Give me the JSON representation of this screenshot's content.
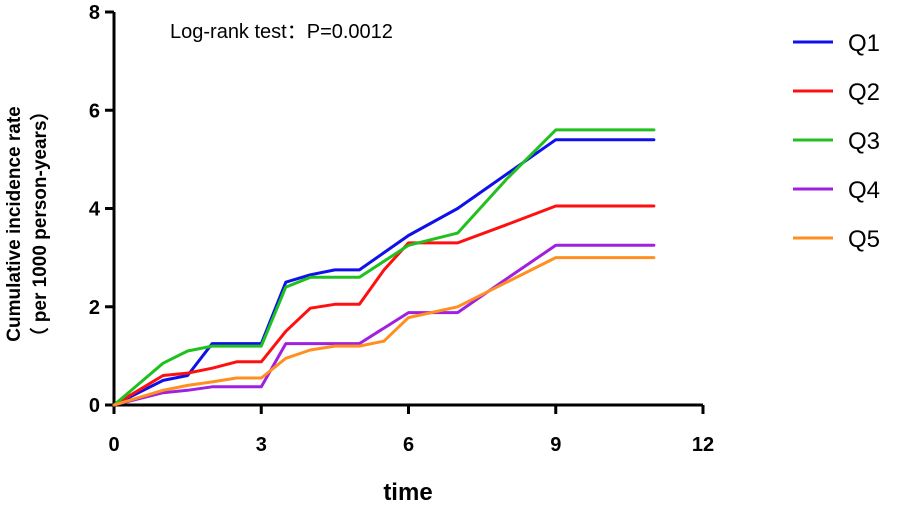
{
  "chart_data": {
    "type": "line",
    "xlabel": "time",
    "ylabel_line1": "Cumulative incidence rate",
    "ylabel_line2": "（ per 1000 person-years）",
    "annotation": "Log-rank test：P=0.0012",
    "xlim": [
      0,
      12
    ],
    "ylim": [
      0,
      8
    ],
    "xticks": [
      0,
      3,
      6,
      9,
      12
    ],
    "yticks": [
      0,
      2,
      4,
      6,
      8
    ],
    "grid": false,
    "legend_position": "right",
    "series": [
      {
        "name": "Q1",
        "color": "#1010e8",
        "points": [
          [
            0,
            0
          ],
          [
            1,
            0.5
          ],
          [
            1.5,
            0.6
          ],
          [
            2,
            1.25
          ],
          [
            3,
            1.25
          ],
          [
            3.5,
            2.5
          ],
          [
            4,
            2.65
          ],
          [
            4.5,
            2.75
          ],
          [
            5,
            2.75
          ],
          [
            6,
            3.45
          ],
          [
            7,
            4.0
          ],
          [
            8,
            4.7
          ],
          [
            9,
            5.4
          ],
          [
            11,
            5.4
          ]
        ]
      },
      {
        "name": "Q2",
        "color": "#ff1010",
        "points": [
          [
            0,
            0
          ],
          [
            1,
            0.6
          ],
          [
            1.5,
            0.65
          ],
          [
            2,
            0.75
          ],
          [
            2.5,
            0.88
          ],
          [
            3,
            0.88
          ],
          [
            3.5,
            1.5
          ],
          [
            4,
            1.97
          ],
          [
            4.5,
            2.05
          ],
          [
            5,
            2.05
          ],
          [
            5.5,
            2.75
          ],
          [
            6,
            3.3
          ],
          [
            7,
            3.3
          ],
          [
            8,
            3.67
          ],
          [
            9,
            4.05
          ],
          [
            11,
            4.05
          ]
        ]
      },
      {
        "name": "Q3",
        "color": "#20c020",
        "points": [
          [
            0,
            0
          ],
          [
            1,
            0.85
          ],
          [
            1.5,
            1.1
          ],
          [
            2,
            1.2
          ],
          [
            3,
            1.2
          ],
          [
            3.5,
            2.4
          ],
          [
            4,
            2.6
          ],
          [
            5,
            2.6
          ],
          [
            6,
            3.25
          ],
          [
            7,
            3.5
          ],
          [
            8,
            4.6
          ],
          [
            9,
            5.6
          ],
          [
            11,
            5.6
          ]
        ]
      },
      {
        "name": "Q4",
        "color": "#a020e0",
        "points": [
          [
            0,
            0
          ],
          [
            1,
            0.25
          ],
          [
            1.5,
            0.3
          ],
          [
            2,
            0.37
          ],
          [
            3,
            0.37
          ],
          [
            3.5,
            1.25
          ],
          [
            5,
            1.25
          ],
          [
            6,
            1.88
          ],
          [
            7,
            1.88
          ],
          [
            8,
            2.57
          ],
          [
            9,
            3.25
          ],
          [
            11,
            3.25
          ]
        ]
      },
      {
        "name": "Q5",
        "color": "#ff9020",
        "points": [
          [
            0,
            0
          ],
          [
            1,
            0.3
          ],
          [
            1.5,
            0.4
          ],
          [
            2,
            0.47
          ],
          [
            2.5,
            0.55
          ],
          [
            3,
            0.55
          ],
          [
            3.5,
            0.95
          ],
          [
            4,
            1.12
          ],
          [
            4.5,
            1.2
          ],
          [
            5,
            1.2
          ],
          [
            5.5,
            1.3
          ],
          [
            6,
            1.78
          ],
          [
            7,
            2.0
          ],
          [
            8,
            2.5
          ],
          [
            9,
            3.0
          ],
          [
            11,
            3.0
          ]
        ]
      }
    ]
  }
}
